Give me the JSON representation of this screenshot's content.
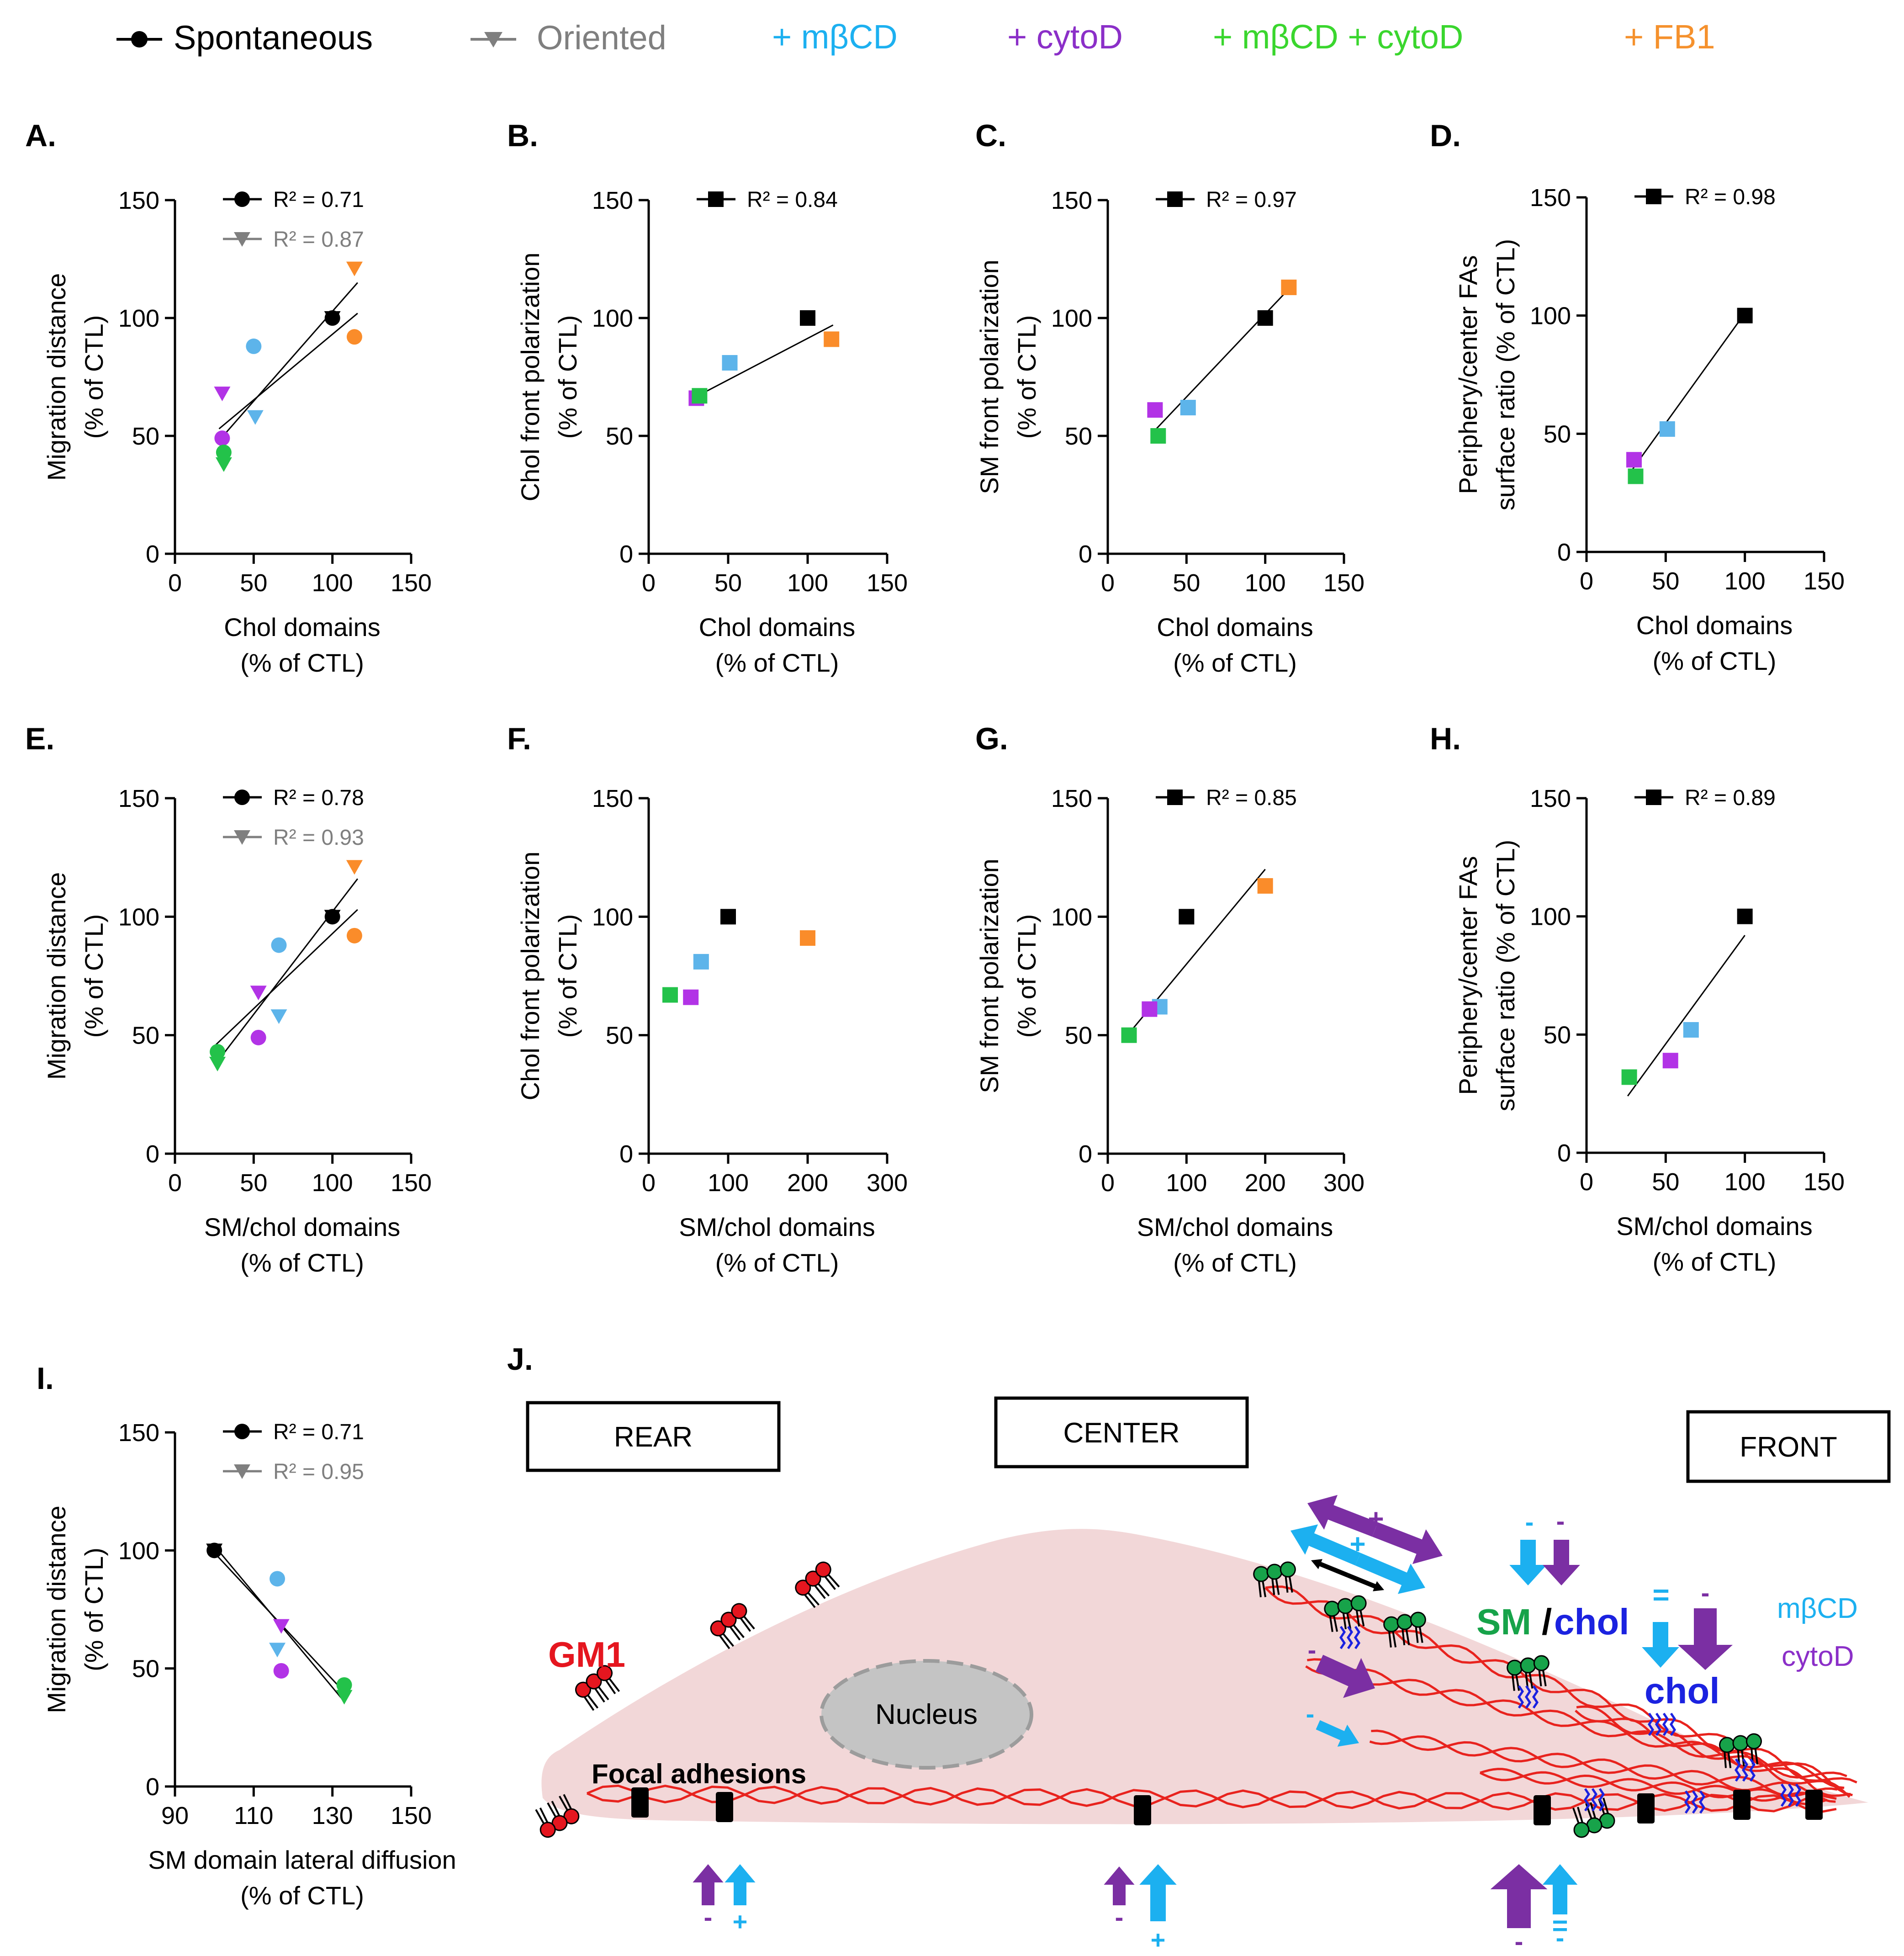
{
  "legend": [
    {
      "label": "Spontaneous",
      "marker": "circle",
      "line": true,
      "color": "#000000",
      "text_color": "#000000"
    },
    {
      "label": "Oriented",
      "marker": "triangle",
      "line": true,
      "color": "#7f7f7f",
      "text_color": "#7f7f7f"
    },
    {
      "label": "+ mβCD",
      "marker": "none",
      "line": false,
      "color": "#1cb0f0",
      "text_color": "#1cb0f0"
    },
    {
      "label": "+ cytoD",
      "marker": "none",
      "line": false,
      "color": "#8b2fc8",
      "text_color": "#8b2fc8"
    },
    {
      "label": "+ mβCD + cytoD",
      "marker": "none",
      "line": false,
      "color": "#3ad62e",
      "text_color": "#3ad62e"
    },
    {
      "label": "+ FB1",
      "marker": "none",
      "line": false,
      "color": "#f5912d",
      "text_color": "#f5912d"
    }
  ],
  "colors": {
    "ctl": "#000000",
    "oriented": "#7f7f7f",
    "mbcd": "#5db4ea",
    "cytod": "#b233e6",
    "mbcd_cytod": "#23c24a",
    "fb1": "#fa8c2a",
    "cell": "#f2d7d8",
    "actin": "#e8231e",
    "gm1": "#e5161f",
    "sm": "#17a34a",
    "chol": "#1b22e0"
  },
  "chart_data": [
    {
      "panel": "A.",
      "type": "scatter",
      "xlabel": [
        "Chol domains",
        "(% of CTL)"
      ],
      "ylabel": [
        "Migration distance",
        "(% of CTL)"
      ],
      "xlim": [
        0,
        150
      ],
      "ylim": [
        0,
        150
      ],
      "xticks": [
        0,
        50,
        100,
        150
      ],
      "yticks": [
        0,
        50,
        100,
        150
      ],
      "series": [
        {
          "name": "Spontaneous",
          "marker": "circle",
          "r2": "R² = 0.71",
          "points": [
            {
              "x": 100,
              "y": 100,
              "c": "ctl"
            },
            {
              "x": 50,
              "y": 88,
              "c": "mbcd"
            },
            {
              "x": 30,
              "y": 49,
              "c": "cytod"
            },
            {
              "x": 31,
              "y": 43,
              "c": "mbcd_cytod"
            },
            {
              "x": 114,
              "y": 92,
              "c": "fb1"
            }
          ],
          "fit": [
            [
              28,
              53
            ],
            [
              116,
              102
            ]
          ]
        },
        {
          "name": "Oriented",
          "marker": "triangle",
          "r2": "R² = 0.87",
          "points": [
            {
              "x": 100,
              "y": 100,
              "c": "ctl"
            },
            {
              "x": 51,
              "y": 58,
              "c": "mbcd"
            },
            {
              "x": 30,
              "y": 68,
              "c": "cytod"
            },
            {
              "x": 31,
              "y": 38,
              "c": "mbcd_cytod"
            },
            {
              "x": 114,
              "y": 121,
              "c": "fb1"
            }
          ],
          "fit": [
            [
              28,
              48
            ],
            [
              116,
              115
            ]
          ]
        }
      ]
    },
    {
      "panel": "B.",
      "type": "scatter",
      "xlabel": [
        "Chol domains",
        "(% of CTL)"
      ],
      "ylabel": [
        "Chol front polarization",
        "(% of CTL)"
      ],
      "xlim": [
        0,
        150
      ],
      "ylim": [
        0,
        150
      ],
      "xticks": [
        0,
        50,
        100,
        150
      ],
      "yticks": [
        0,
        50,
        100,
        150
      ],
      "series": [
        {
          "name": "Spontaneous",
          "marker": "square",
          "r2": "R² = 0.84",
          "points": [
            {
              "x": 100,
              "y": 100,
              "c": "ctl"
            },
            {
              "x": 51,
              "y": 81,
              "c": "mbcd"
            },
            {
              "x": 30,
              "y": 66,
              "c": "cytod"
            },
            {
              "x": 32,
              "y": 67,
              "c": "mbcd_cytod"
            },
            {
              "x": 115,
              "y": 91,
              "c": "fb1"
            }
          ],
          "fit": [
            [
              28,
              66
            ],
            [
              116,
              97
            ]
          ]
        }
      ]
    },
    {
      "panel": "C.",
      "type": "scatter",
      "xlabel": [
        "Chol domains",
        "(% of CTL)"
      ],
      "ylabel": [
        "SM front polarization",
        "(% of CTL)"
      ],
      "xlim": [
        0,
        150
      ],
      "ylim": [
        0,
        150
      ],
      "xticks": [
        0,
        50,
        100,
        150
      ],
      "yticks": [
        0,
        50,
        100,
        150
      ],
      "series": [
        {
          "name": "Spontaneous",
          "marker": "square",
          "r2": "R² = 0.97",
          "points": [
            {
              "x": 100,
              "y": 100,
              "c": "ctl"
            },
            {
              "x": 51,
              "y": 62,
              "c": "mbcd"
            },
            {
              "x": 30,
              "y": 61,
              "c": "cytod"
            },
            {
              "x": 32,
              "y": 50,
              "c": "mbcd_cytod"
            },
            {
              "x": 115,
              "y": 113,
              "c": "fb1"
            }
          ],
          "fit": [
            [
              28,
              51
            ],
            [
              116,
              113
            ]
          ]
        }
      ]
    },
    {
      "panel": "D.",
      "type": "scatter",
      "xlabel": [
        "Chol domains",
        "(% of CTL)"
      ],
      "ylabel": [
        "Periphery/center FAs",
        "surface ratio (% of CTL)"
      ],
      "xlim": [
        0,
        150
      ],
      "ylim": [
        0,
        150
      ],
      "xticks": [
        0,
        50,
        100,
        150
      ],
      "yticks": [
        0,
        50,
        100,
        150
      ],
      "series": [
        {
          "name": "Spontaneous",
          "marker": "square",
          "r2": "R² = 0.98",
          "points": [
            {
              "x": 100,
              "y": 100,
              "c": "ctl"
            },
            {
              "x": 51,
              "y": 52,
              "c": "mbcd"
            },
            {
              "x": 30,
              "y": 39,
              "c": "cytod"
            },
            {
              "x": 31,
              "y": 32,
              "c": "mbcd_cytod"
            }
          ],
          "fit": [
            [
              28,
              34
            ],
            [
              100,
              101
            ]
          ]
        }
      ]
    },
    {
      "panel": "E.",
      "type": "scatter",
      "xlabel": [
        "SM/chol domains",
        "(% of CTL)"
      ],
      "ylabel": [
        "Migration distance",
        "(% of CTL)"
      ],
      "xlim": [
        0,
        150
      ],
      "ylim": [
        0,
        150
      ],
      "xticks": [
        0,
        50,
        100,
        150
      ],
      "yticks": [
        0,
        50,
        100,
        150
      ],
      "series": [
        {
          "name": "Spontaneous",
          "marker": "circle",
          "r2": "R² = 0.78",
          "points": [
            {
              "x": 100,
              "y": 100,
              "c": "ctl"
            },
            {
              "x": 66,
              "y": 88,
              "c": "mbcd"
            },
            {
              "x": 53,
              "y": 49,
              "c": "cytod"
            },
            {
              "x": 27,
              "y": 43,
              "c": "mbcd_cytod"
            },
            {
              "x": 114,
              "y": 92,
              "c": "fb1"
            }
          ],
          "fit": [
            [
              26,
              46
            ],
            [
              116,
              103
            ]
          ]
        },
        {
          "name": "Oriented",
          "marker": "triangle",
          "r2": "R² = 0.93",
          "points": [
            {
              "x": 100,
              "y": 100,
              "c": "ctl"
            },
            {
              "x": 66,
              "y": 58,
              "c": "mbcd"
            },
            {
              "x": 53,
              "y": 68,
              "c": "cytod"
            },
            {
              "x": 27,
              "y": 38,
              "c": "mbcd_cytod"
            },
            {
              "x": 114,
              "y": 121,
              "c": "fb1"
            }
          ],
          "fit": [
            [
              26,
              38
            ],
            [
              116,
              116
            ]
          ]
        }
      ]
    },
    {
      "panel": "F.",
      "type": "scatter",
      "xlabel": [
        "SM/chol domains",
        "(% of CTL)"
      ],
      "ylabel": [
        "Chol front polarization",
        "(% of CTL)"
      ],
      "xlim": [
        0,
        300
      ],
      "ylim": [
        0,
        150
      ],
      "xticks": [
        0,
        100,
        200,
        300
      ],
      "yticks": [
        0,
        50,
        100,
        150
      ],
      "series": [
        {
          "name": "Spontaneous",
          "marker": "square",
          "r2": "",
          "points": [
            {
              "x": 100,
              "y": 100,
              "c": "ctl"
            },
            {
              "x": 66,
              "y": 81,
              "c": "mbcd"
            },
            {
              "x": 53,
              "y": 66,
              "c": "cytod"
            },
            {
              "x": 27,
              "y": 67,
              "c": "mbcd_cytod"
            },
            {
              "x": 200,
              "y": 91,
              "c": "fb1"
            }
          ],
          "fit": null
        }
      ]
    },
    {
      "panel": "G.",
      "type": "scatter",
      "xlabel": [
        "SM/chol domains",
        "(% of CTL)"
      ],
      "ylabel": [
        "SM front polarization",
        "(% of CTL)"
      ],
      "xlim": [
        0,
        300
      ],
      "ylim": [
        0,
        150
      ],
      "xticks": [
        0,
        100,
        200,
        300
      ],
      "yticks": [
        0,
        50,
        100,
        150
      ],
      "series": [
        {
          "name": "Spontaneous",
          "marker": "square",
          "r2": "R² = 0.85",
          "points": [
            {
              "x": 100,
              "y": 100,
              "c": "ctl"
            },
            {
              "x": 66,
              "y": 62,
              "c": "mbcd"
            },
            {
              "x": 53,
              "y": 61,
              "c": "cytod"
            },
            {
              "x": 27,
              "y": 50,
              "c": "mbcd_cytod"
            },
            {
              "x": 200,
              "y": 113,
              "c": "fb1"
            }
          ],
          "fit": [
            [
              25,
              50
            ],
            [
              200,
              120
            ]
          ]
        }
      ]
    },
    {
      "panel": "H.",
      "type": "scatter",
      "xlabel": [
        "SM/chol domains",
        "(% of CTL)"
      ],
      "ylabel": [
        "Periphery/center FAs",
        "surface ratio (% of CTL)"
      ],
      "xlim": [
        0,
        150
      ],
      "ylim": [
        0,
        150
      ],
      "xticks": [
        0,
        50,
        100,
        150
      ],
      "yticks": [
        0,
        50,
        100,
        150
      ],
      "series": [
        {
          "name": "Spontaneous",
          "marker": "square",
          "r2": "R² = 0.89",
          "points": [
            {
              "x": 100,
              "y": 100,
              "c": "ctl"
            },
            {
              "x": 66,
              "y": 52,
              "c": "mbcd"
            },
            {
              "x": 53,
              "y": 39,
              "c": "cytod"
            },
            {
              "x": 27,
              "y": 32,
              "c": "mbcd_cytod"
            }
          ],
          "fit": [
            [
              26,
              24
            ],
            [
              100,
              92
            ]
          ]
        }
      ]
    },
    {
      "panel": "I.",
      "type": "scatter",
      "xlabel": [
        "SM domain lateral diffusion",
        "(% of CTL)"
      ],
      "ylabel": [
        "Migration distance",
        "(% of CTL)"
      ],
      "xlim": [
        90,
        150
      ],
      "ylim": [
        0,
        150
      ],
      "xticks": [
        90,
        110,
        130,
        150
      ],
      "yticks": [
        0,
        50,
        100,
        150
      ],
      "series": [
        {
          "name": "Spontaneous",
          "marker": "circle",
          "r2": "R² = 0.71",
          "points": [
            {
              "x": 100,
              "y": 100,
              "c": "ctl"
            },
            {
              "x": 116,
              "y": 88,
              "c": "mbcd"
            },
            {
              "x": 117,
              "y": 49,
              "c": "cytod"
            },
            {
              "x": 133,
              "y": 43,
              "c": "mbcd_cytod"
            }
          ],
          "fit": [
            [
              100,
              99
            ],
            [
              133,
              40
            ]
          ]
        },
        {
          "name": "Oriented",
          "marker": "triangle",
          "r2": "R² = 0.95",
          "points": [
            {
              "x": 100,
              "y": 100,
              "c": "ctl"
            },
            {
              "x": 116,
              "y": 58,
              "c": "mbcd"
            },
            {
              "x": 117,
              "y": 68,
              "c": "cytod"
            },
            {
              "x": 133,
              "y": 38,
              "c": "mbcd_cytod"
            }
          ],
          "fit": [
            [
              100,
              102
            ],
            [
              133,
              36
            ]
          ]
        }
      ]
    }
  ],
  "schematic": {
    "panel": "J.",
    "boxes": [
      "REAR",
      "CENTER",
      "FRONT"
    ],
    "labels": {
      "gm1": "GM1",
      "nucleus": "Nucleus",
      "focal_adhesions": "Focal adhesions",
      "sm": "SM",
      "slash": "/",
      "chol": "chol",
      "chol2": "chol",
      "mbcd": "mβCD",
      "cytod": "cytoD"
    },
    "signs": {
      "plus": "+",
      "minus": "-",
      "equal": "="
    }
  }
}
